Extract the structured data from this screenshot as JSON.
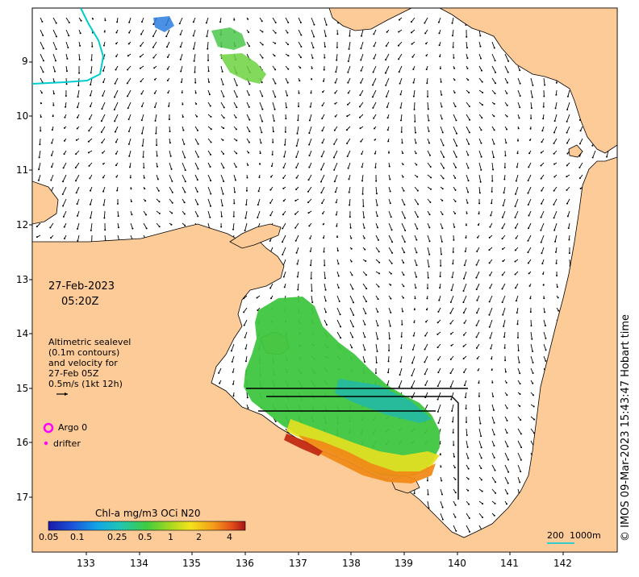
{
  "map": {
    "date": "27-Feb-2023",
    "time": "05:20Z",
    "credit": "© IMOS 09-Mar-2023 15:43:47 Hobart time",
    "lat_ticks": [
      "9",
      "10",
      "11",
      "12",
      "13",
      "14",
      "15",
      "16",
      "17"
    ],
    "lon_ticks": [
      "133",
      "134",
      "135",
      "136",
      "137",
      "138",
      "139",
      "140",
      "141",
      "142"
    ],
    "velocity_note": [
      "Altimetric sealevel",
      "(0.1m contours)",
      "and velocity for",
      "27-Feb 05Z",
      "0.5m/s (1kt 12h)"
    ],
    "legend": {
      "argo_label": "Argo 0",
      "drifter_label": "drifter",
      "argo_color": "#ff00ff",
      "drifter_color": "#ff00ff"
    },
    "colorbar": {
      "title": "Chl-a mg/m3 OCi N20",
      "ticks": [
        "0.05",
        "0.1",
        "0.25",
        "0.5",
        "1",
        "2",
        "4"
      ]
    },
    "scale_bar": {
      "labels": [
        "200",
        "1000m"
      ],
      "color": "#33cccc"
    },
    "colors": {
      "land": "#fccb98",
      "ocean": "#ffffff",
      "contour": "#00cccc"
    }
  }
}
